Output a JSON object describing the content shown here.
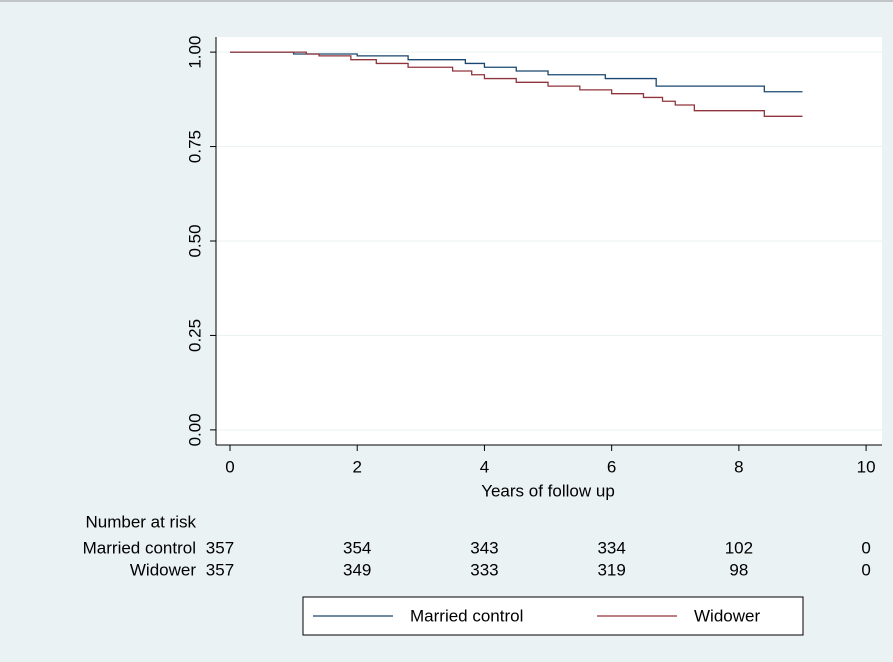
{
  "chart_data": {
    "type": "step",
    "xlabel": "Years of follow up",
    "xlim": [
      -0.22,
      10.25
    ],
    "ylim": [
      -0.04,
      1.04
    ],
    "xticks": [
      0,
      2,
      4,
      6,
      8,
      10
    ],
    "yticks": [
      {
        "value": 0,
        "label": "0.00"
      },
      {
        "value": 0.25,
        "label": "0.25"
      },
      {
        "value": 0.5,
        "label": "0.50"
      },
      {
        "value": 0.75,
        "label": "0.75"
      },
      {
        "value": 1,
        "label": "1.00"
      }
    ],
    "grid": true,
    "series": [
      {
        "name": "Married control",
        "color": "#1a476f",
        "x": [
          0,
          1.0,
          2.0,
          2.8,
          3.7,
          4.0,
          4.5,
          5.0,
          5.9,
          6.7,
          8.4,
          9.0
        ],
        "values": [
          1,
          0.995,
          0.99,
          0.98,
          0.97,
          0.96,
          0.95,
          0.94,
          0.93,
          0.91,
          0.895,
          0.895
        ]
      },
      {
        "name": "Widower",
        "color": "#90353b",
        "x": [
          0,
          1.2,
          1.4,
          1.9,
          2.3,
          2.8,
          3.5,
          3.8,
          4.0,
          4.5,
          5.0,
          5.5,
          6.0,
          6.5,
          6.8,
          7.0,
          7.3,
          8.4,
          9.0
        ],
        "values": [
          1,
          0.995,
          0.99,
          0.98,
          0.97,
          0.96,
          0.95,
          0.94,
          0.93,
          0.92,
          0.91,
          0.9,
          0.89,
          0.88,
          0.87,
          0.86,
          0.845,
          0.83,
          0.83
        ]
      }
    ],
    "risk_table": {
      "title": "Number at risk",
      "rows": [
        {
          "name": "Married control",
          "values": [
            357,
            354,
            343,
            334,
            102,
            0
          ]
        },
        {
          "name": "Widower",
          "values": [
            357,
            349,
            333,
            319,
            98,
            0
          ]
        }
      ]
    }
  }
}
